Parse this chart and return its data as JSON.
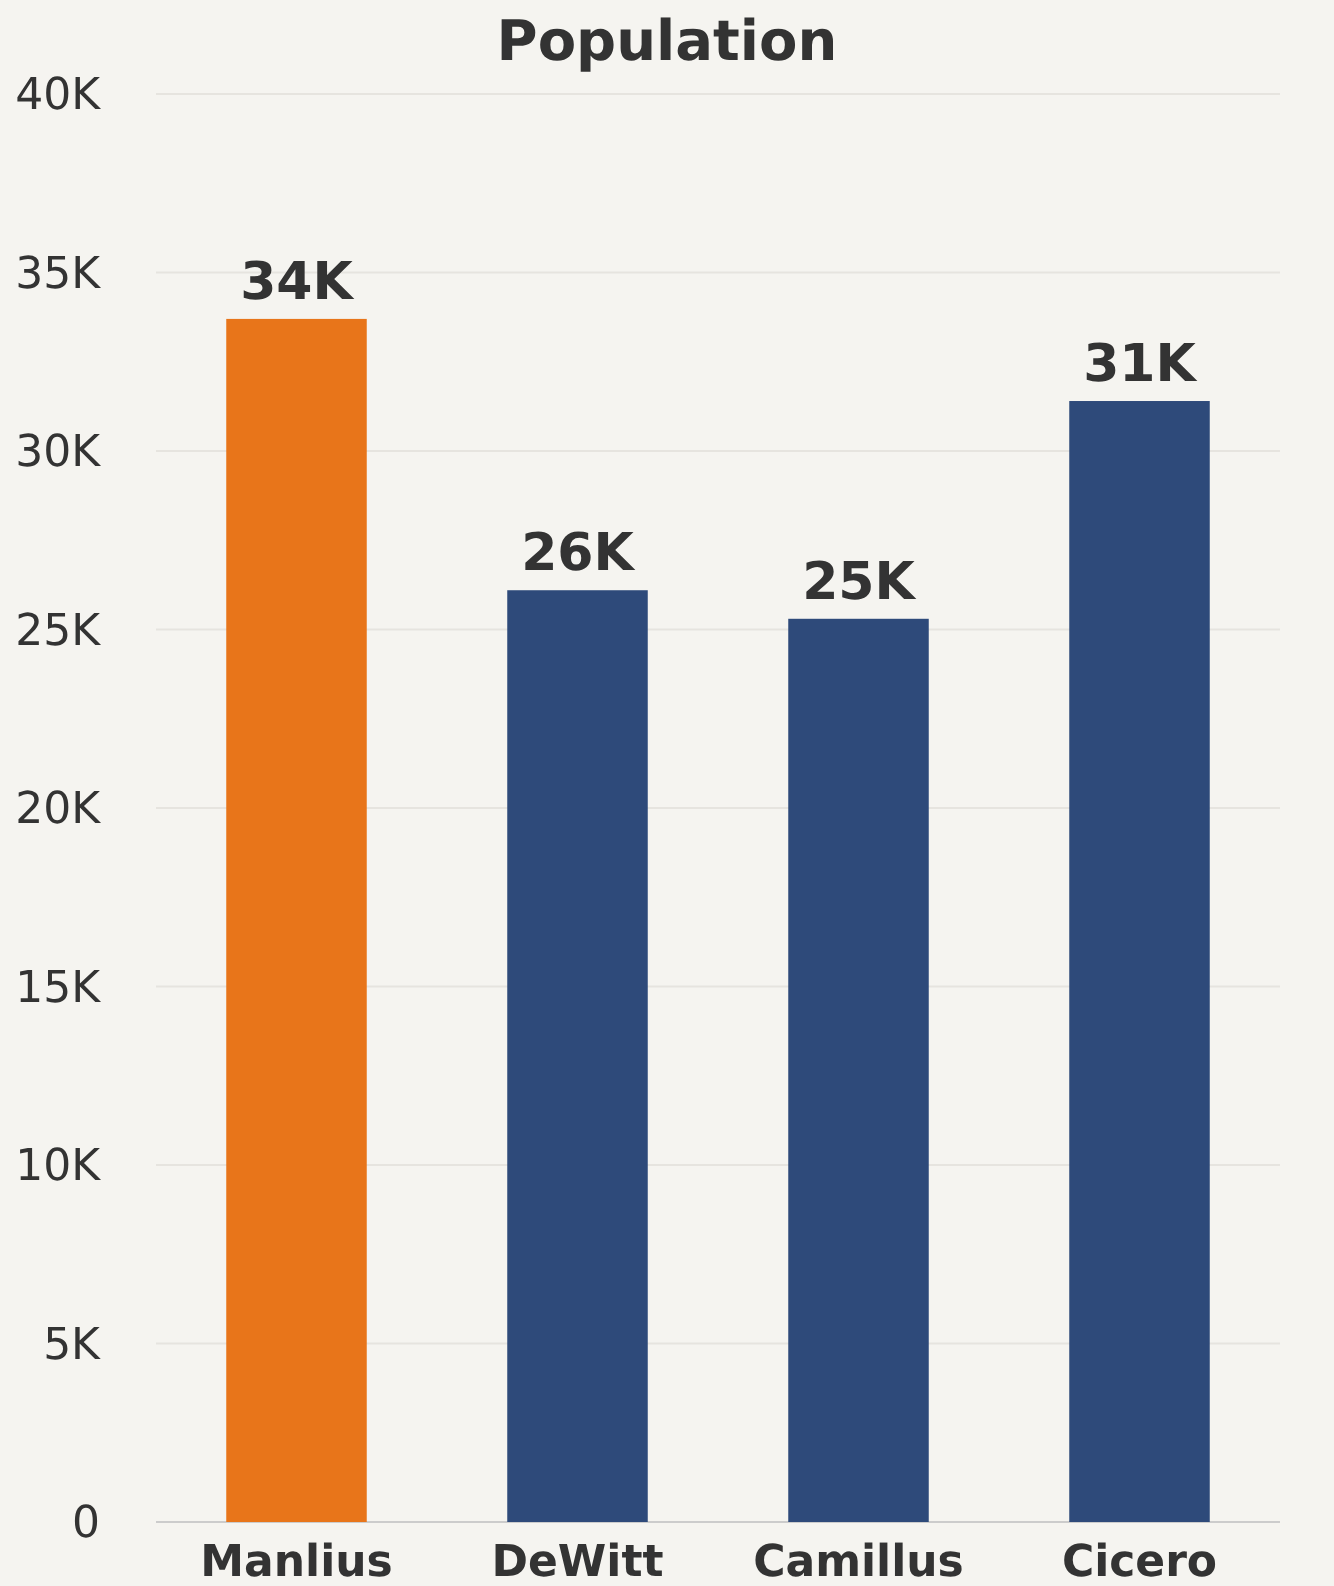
{
  "chart_data": {
    "type": "bar",
    "title": "Population",
    "categories": [
      "Manlius",
      "DeWitt",
      "Camillus",
      "Cicero"
    ],
    "values": [
      33700,
      26100,
      25300,
      31400
    ],
    "colors": [
      "#e8751a",
      "#2e4a7a",
      "#2e4a7a",
      "#2e4a7a"
    ],
    "value_labels": [
      "34K",
      "26K",
      "25K",
      "31K"
    ],
    "ylim": [
      0,
      40000
    ],
    "yticks": [
      0,
      {
        "value": 5000,
        "label": "5K"
      },
      {
        "value": 10000,
        "label": "10K"
      },
      {
        "value": 15000,
        "label": "15K"
      },
      {
        "value": 20000,
        "label": "20K"
      },
      {
        "value": 25000,
        "label": "25K"
      },
      {
        "value": 30000,
        "label": "30K"
      },
      {
        "value": 35000,
        "label": "35K"
      },
      {
        "value": 40000,
        "label": "40K"
      }
    ],
    "grid": "y"
  }
}
